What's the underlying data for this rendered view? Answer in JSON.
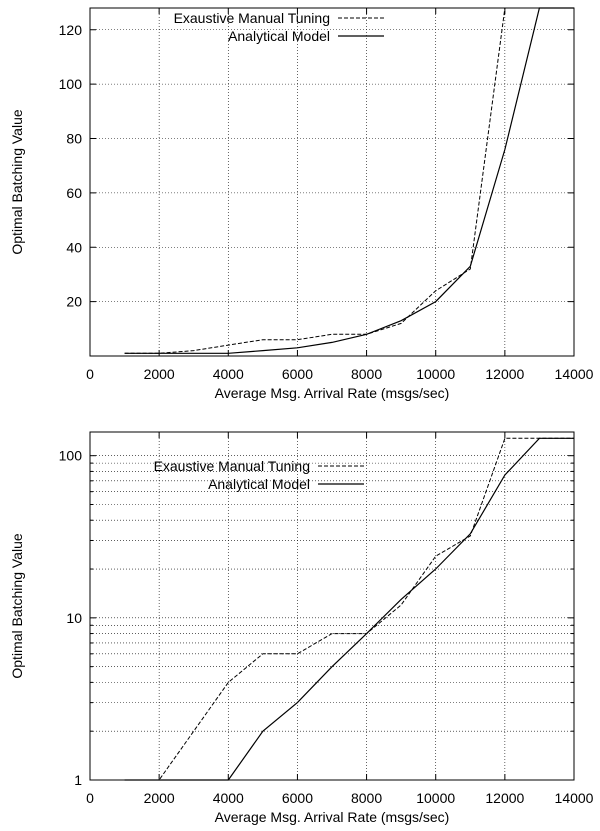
{
  "chart_data": [
    {
      "type": "line",
      "ylabel": "Optimal Batching Value",
      "xlabel": "Average Msg. Arrival Rate (msgs/sec)",
      "xlim": [
        0,
        14000
      ],
      "ylim": [
        0,
        128
      ],
      "yscale": "linear",
      "grid": true,
      "legend_position": "top-left",
      "x_ticks": [
        {
          "value": 0,
          "label": "0"
        },
        {
          "value": 2000,
          "label": "2000"
        },
        {
          "value": 4000,
          "label": "4000"
        },
        {
          "value": 6000,
          "label": "6000"
        },
        {
          "value": 8000,
          "label": "8000"
        },
        {
          "value": 10000,
          "label": "10000"
        },
        {
          "value": 12000,
          "label": "12000"
        },
        {
          "value": 14000,
          "label": "14000"
        }
      ],
      "y_ticks": [
        {
          "value": 20,
          "label": "20"
        },
        {
          "value": 40,
          "label": "40"
        },
        {
          "value": 60,
          "label": "60"
        },
        {
          "value": 80,
          "label": "80"
        },
        {
          "value": 100,
          "label": "100"
        },
        {
          "value": 120,
          "label": "120"
        }
      ],
      "series": [
        {
          "name": "Exaustive Manual Tuning",
          "style": "dashed",
          "color": "#000000",
          "x": [
            1000,
            2000,
            3000,
            4000,
            5000,
            6000,
            7000,
            8000,
            9000,
            10000,
            11000,
            12000,
            13000,
            14000
          ],
          "y": [
            1,
            1,
            2,
            4,
            6,
            6,
            8,
            8,
            12,
            24,
            32,
            128,
            128,
            128
          ]
        },
        {
          "name": "Analytical Model",
          "style": "solid",
          "color": "#000000",
          "x": [
            1000,
            2000,
            3000,
            4000,
            5000,
            6000,
            7000,
            8000,
            9000,
            10000,
            11000,
            12000,
            13000,
            14000
          ],
          "y": [
            1,
            1,
            1,
            1,
            2,
            3,
            5,
            8,
            13,
            20,
            33,
            76,
            128,
            128
          ]
        }
      ]
    },
    {
      "type": "line",
      "ylabel": "Optimal Batching Value",
      "xlabel": "Average Msg. Arrival Rate (msgs/sec)",
      "xlim": [
        0,
        14000
      ],
      "ylim": [
        1,
        140
      ],
      "yscale": "log",
      "grid": true,
      "legend_position": "top-left",
      "x_ticks": [
        {
          "value": 0,
          "label": "0"
        },
        {
          "value": 2000,
          "label": "2000"
        },
        {
          "value": 4000,
          "label": "4000"
        },
        {
          "value": 6000,
          "label": "6000"
        },
        {
          "value": 8000,
          "label": "8000"
        },
        {
          "value": 10000,
          "label": "10000"
        },
        {
          "value": 12000,
          "label": "12000"
        },
        {
          "value": 14000,
          "label": "14000"
        }
      ],
      "y_ticks": [
        {
          "value": 1,
          "label": "1"
        },
        {
          "value": 10,
          "label": "10"
        },
        {
          "value": 100,
          "label": "100"
        }
      ],
      "y_minor_grid": [
        2,
        3,
        4,
        5,
        6,
        7,
        8,
        9,
        20,
        30,
        40,
        50,
        60,
        70,
        80,
        90
      ],
      "series": [
        {
          "name": "Exaustive Manual Tuning",
          "style": "dashed",
          "color": "#000000",
          "x": [
            1000,
            2000,
            3000,
            4000,
            5000,
            6000,
            7000,
            8000,
            9000,
            10000,
            11000,
            12000,
            13000,
            14000
          ],
          "y": [
            1,
            1,
            2,
            4,
            6,
            6,
            8,
            8,
            12,
            24,
            32,
            128,
            128,
            128
          ]
        },
        {
          "name": "Analytical Model",
          "style": "solid",
          "color": "#000000",
          "x": [
            1000,
            2000,
            3000,
            4000,
            5000,
            6000,
            7000,
            8000,
            9000,
            10000,
            11000,
            12000,
            13000,
            14000
          ],
          "y": [
            1,
            1,
            1,
            1,
            2,
            3,
            5,
            8,
            13,
            20,
            33,
            76,
            128,
            128
          ]
        }
      ]
    }
  ]
}
